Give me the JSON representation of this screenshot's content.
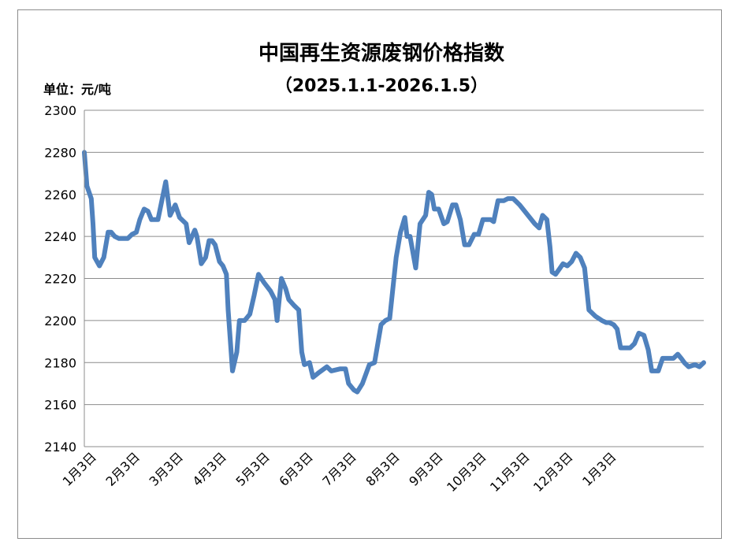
{
  "chart_data": {
    "type": "line",
    "title": "中国再生资源废钢价格指数",
    "subtitle": "（2025.1.1-2026.1.5）",
    "ylabel": "单位：元/吨",
    "xlabel": "",
    "ylim": [
      2140,
      2300
    ],
    "yticks": [
      2140,
      2160,
      2180,
      2200,
      2220,
      2240,
      2260,
      2280,
      2300
    ],
    "xticks": [
      "1月3日",
      "2月3日",
      "3月3日",
      "4月3日",
      "5月3日",
      "6月3日",
      "7月3日",
      "8月3日",
      "9月3日",
      "10月3日",
      "11月3日",
      "12月3日",
      "1月3日"
    ],
    "grid": true,
    "legend": "none",
    "line_color": "#4f81bd",
    "series": [
      {
        "values": [
          [
            0,
            2280
          ],
          [
            0.06,
            2264
          ],
          [
            0.16,
            2258
          ],
          [
            0.2,
            2246
          ],
          [
            0.24,
            2230
          ],
          [
            0.35,
            2226
          ],
          [
            0.45,
            2230
          ],
          [
            0.55,
            2242
          ],
          [
            0.62,
            2242
          ],
          [
            0.7,
            2240
          ],
          [
            0.8,
            2239
          ],
          [
            1.0,
            2239
          ],
          [
            1.1,
            2241
          ],
          [
            1.2,
            2242
          ],
          [
            1.28,
            2248
          ],
          [
            1.38,
            2253
          ],
          [
            1.47,
            2252
          ],
          [
            1.55,
            2248
          ],
          [
            1.7,
            2248
          ],
          [
            1.82,
            2260
          ],
          [
            1.88,
            2266
          ],
          [
            1.98,
            2250
          ],
          [
            2.1,
            2255
          ],
          [
            2.2,
            2249
          ],
          [
            2.35,
            2246
          ],
          [
            2.42,
            2237
          ],
          [
            2.55,
            2243
          ],
          [
            2.6,
            2240
          ],
          [
            2.7,
            2227
          ],
          [
            2.8,
            2230
          ],
          [
            2.88,
            2238
          ],
          [
            2.95,
            2238
          ],
          [
            3.02,
            2236
          ],
          [
            3.12,
            2228
          ],
          [
            3.2,
            2226
          ],
          [
            3.28,
            2222
          ],
          [
            3.32,
            2205
          ],
          [
            3.42,
            2176
          ],
          [
            3.52,
            2185
          ],
          [
            3.58,
            2200
          ],
          [
            3.7,
            2200
          ],
          [
            3.82,
            2203
          ],
          [
            3.92,
            2212
          ],
          [
            4.02,
            2222
          ],
          [
            4.15,
            2218
          ],
          [
            4.3,
            2214
          ],
          [
            4.4,
            2210
          ],
          [
            4.45,
            2200
          ],
          [
            4.55,
            2220
          ],
          [
            4.65,
            2215
          ],
          [
            4.72,
            2210
          ],
          [
            4.85,
            2207
          ],
          [
            4.95,
            2205
          ],
          [
            5.02,
            2185
          ],
          [
            5.08,
            2179
          ],
          [
            5.2,
            2180
          ],
          [
            5.28,
            2173
          ],
          [
            5.4,
            2175
          ],
          [
            5.6,
            2178
          ],
          [
            5.7,
            2176
          ],
          [
            5.9,
            2177
          ],
          [
            6.03,
            2177
          ],
          [
            6.1,
            2170
          ],
          [
            6.22,
            2167
          ],
          [
            6.3,
            2166
          ],
          [
            6.42,
            2170
          ],
          [
            6.58,
            2179
          ],
          [
            6.7,
            2180
          ],
          [
            6.85,
            2198
          ],
          [
            6.95,
            2200
          ],
          [
            7.05,
            2201
          ],
          [
            7.2,
            2230
          ],
          [
            7.3,
            2242
          ],
          [
            7.4,
            2249
          ],
          [
            7.45,
            2240
          ],
          [
            7.52,
            2240
          ],
          [
            7.65,
            2225
          ],
          [
            7.75,
            2246
          ],
          [
            7.88,
            2250
          ],
          [
            7.95,
            2261
          ],
          [
            8.02,
            2260
          ],
          [
            8.08,
            2253
          ],
          [
            8.18,
            2253
          ],
          [
            8.3,
            2246
          ],
          [
            8.38,
            2247
          ],
          [
            8.5,
            2255
          ],
          [
            8.58,
            2255
          ],
          [
            8.68,
            2248
          ],
          [
            8.78,
            2236
          ],
          [
            8.88,
            2236
          ],
          [
            9.0,
            2241
          ],
          [
            9.1,
            2241
          ],
          [
            9.2,
            2248
          ],
          [
            9.38,
            2248
          ],
          [
            9.45,
            2247
          ],
          [
            9.55,
            2257
          ],
          [
            9.68,
            2257
          ],
          [
            9.78,
            2258
          ],
          [
            9.9,
            2258
          ],
          [
            10.05,
            2255
          ],
          [
            10.4,
            2246
          ],
          [
            10.5,
            2244
          ],
          [
            10.58,
            2250
          ],
          [
            10.68,
            2248
          ],
          [
            10.75,
            2235
          ],
          [
            10.8,
            2223
          ],
          [
            10.88,
            2222
          ],
          [
            10.95,
            2224
          ],
          [
            11.05,
            2227
          ],
          [
            11.15,
            2226
          ],
          [
            11.25,
            2228
          ],
          [
            11.35,
            2232
          ],
          [
            11.45,
            2230
          ],
          [
            11.55,
            2225
          ],
          [
            11.65,
            2205
          ],
          [
            11.8,
            2202
          ],
          [
            11.95,
            2200
          ],
          [
            12.05,
            2199
          ],
          [
            12.12,
            2199
          ],
          [
            12.22,
            2198
          ],
          [
            12.3,
            2196
          ],
          [
            12.38,
            2187
          ],
          [
            12.5,
            2187
          ],
          [
            12.6,
            2187
          ],
          [
            12.7,
            2189
          ],
          [
            12.8,
            2194
          ],
          [
            12.92,
            2193
          ],
          [
            13.02,
            2186
          ],
          [
            13.1,
            2176
          ],
          [
            13.25,
            2176
          ],
          [
            13.35,
            2182
          ],
          [
            13.5,
            2182
          ],
          [
            13.6,
            2182
          ],
          [
            13.7,
            2184
          ],
          [
            13.78,
            2182
          ],
          [
            13.85,
            2180
          ],
          [
            13.95,
            2178
          ],
          [
            14.1,
            2179
          ],
          [
            14.2,
            2178
          ],
          [
            14.3,
            2180
          ]
        ]
      }
    ]
  }
}
